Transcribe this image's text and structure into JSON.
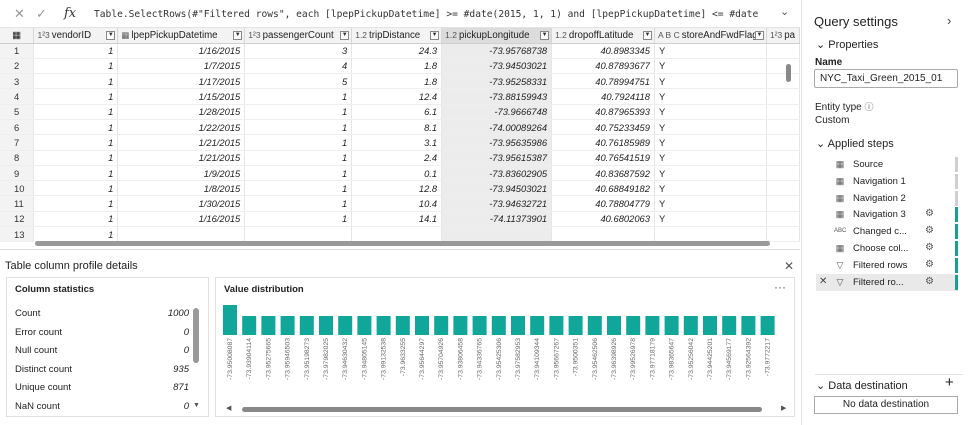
{
  "formula_bar": {
    "cancel_icon": "✕",
    "accept_icon": "✓",
    "fx_label": "fx",
    "formula": "Table.SelectRows(#\"Filtered rows\", each [lpepPickupDatetime] >= #date(2015, 1, 1) and [lpepPickupDatetime] <= #date"
  },
  "grid": {
    "columns": [
      {
        "type": "1²3",
        "name": "vendorID"
      },
      {
        "type": "▦",
        "name": "lpepPickupDatetime"
      },
      {
        "type": "1²3",
        "name": "passengerCount"
      },
      {
        "type": "1.2",
        "name": "tripDistance"
      },
      {
        "type": "1.2",
        "name": "pickupLongitude"
      },
      {
        "type": "1.2",
        "name": "dropoffLatitude"
      },
      {
        "type": "A B C",
        "name": "storeAndFwdFlag"
      },
      {
        "type": "1²3",
        "name": "pa"
      }
    ],
    "rows": [
      [
        "1",
        "1/16/2015",
        "3",
        "24.3",
        "-73.95768738",
        "40.8983345",
        "Y"
      ],
      [
        "1",
        "1/7/2015",
        "4",
        "1.8",
        "-73.94503021",
        "40.87893677",
        "Y"
      ],
      [
        "1",
        "1/17/2015",
        "5",
        "1.8",
        "-73.95258331",
        "40.78994751",
        "Y"
      ],
      [
        "1",
        "1/15/2015",
        "1",
        "12.4",
        "-73.88159943",
        "40.7924118",
        "Y"
      ],
      [
        "1",
        "1/28/2015",
        "1",
        "6.1",
        "-73.9666748",
        "40.87965393",
        "Y"
      ],
      [
        "1",
        "1/22/2015",
        "1",
        "8.1",
        "-74.00089264",
        "40.75233459",
        "Y"
      ],
      [
        "1",
        "1/21/2015",
        "1",
        "3.1",
        "-73.95635986",
        "40.76185989",
        "Y"
      ],
      [
        "1",
        "1/21/2015",
        "1",
        "2.4",
        "-73.95615387",
        "40.76541519",
        "Y"
      ],
      [
        "1",
        "1/9/2015",
        "1",
        "0.1",
        "-73.83602905",
        "40.83687592",
        "Y"
      ],
      [
        "1",
        "1/8/2015",
        "1",
        "12.8",
        "-73.94503021",
        "40.68849182",
        "Y"
      ],
      [
        "1",
        "1/30/2015",
        "1",
        "10.4",
        "-73.94632721",
        "40.78804779",
        "Y"
      ],
      [
        "1",
        "1/16/2015",
        "1",
        "14.1",
        "-74.11373901",
        "40.6802063",
        "Y"
      ],
      [
        "1",
        "",
        "",
        "",
        "",
        "",
        ""
      ]
    ],
    "row_numbers": [
      "1",
      "2",
      "3",
      "4",
      "5",
      "6",
      "7",
      "8",
      "9",
      "10",
      "11",
      "12",
      "13"
    ]
  },
  "profile": {
    "title": "Table column profile details",
    "close_icon": "✕",
    "column_statistics": {
      "heading": "Column statistics",
      "stats": [
        {
          "label": "Count",
          "value": "1000"
        },
        {
          "label": "Error count",
          "value": "0"
        },
        {
          "label": "Null count",
          "value": "0"
        },
        {
          "label": "Distinct count",
          "value": "935"
        },
        {
          "label": "Unique count",
          "value": "871"
        },
        {
          "label": "NaN count",
          "value": "0"
        }
      ]
    },
    "value_distribution": {
      "heading": "Value distribution",
      "more_icon": "···",
      "labels": [
        "-73.95008087",
        "-73.93904114",
        "-73.95275665",
        "-73.95946503",
        "-73.95198273",
        "-73.97982025",
        "-73.94630432",
        "-73.94805145",
        "-73.99132538",
        "-73.9633255",
        "-73.95644297",
        "-73.95704926",
        "-73.93806458",
        "-73.94336765",
        "-73.95425306",
        "-73.97582953",
        "-73.94109344",
        "-73.95667267",
        "-73.9500351",
        "-73.95462506",
        "-73.96398926",
        "-73.99526978",
        "-73.97718179",
        "-73.98365647",
        "-73.95256042",
        "-73.94425201",
        "-73.94569177",
        "-73.92564392",
        "-73.9772217"
      ],
      "chart_data": {
        "type": "bar",
        "values": [
          3,
          1,
          1,
          1,
          1,
          1,
          1,
          1,
          1,
          1,
          1,
          1,
          1,
          1,
          1,
          1,
          1,
          1,
          1,
          1,
          1,
          1,
          1,
          1,
          1,
          1,
          1,
          1,
          1
        ]
      }
    }
  },
  "query_settings": {
    "title": "Query settings",
    "expand_icon": "›",
    "properties_label": "Properties",
    "name_label": "Name",
    "name_value": "NYC_Taxi_Green_2015_01",
    "entity_type_label": "Entity type",
    "entity_type_value": "Custom",
    "applied_steps_label": "Applied steps",
    "steps": [
      {
        "icon": "▦",
        "label": "Source"
      },
      {
        "icon": "▦",
        "label": "Navigation 1"
      },
      {
        "icon": "▦",
        "label": "Navigation 2"
      },
      {
        "icon": "▦",
        "label": "Navigation 3"
      },
      {
        "icon": "ABC",
        "label": "Changed c..."
      },
      {
        "icon": "▦",
        "label": "Choose col..."
      },
      {
        "icon": "▽",
        "label": "Filtered rows"
      },
      {
        "icon": "▽",
        "label": "Filtered ro..."
      }
    ],
    "data_destination_label": "Data destination",
    "add_icon": "+",
    "no_destination": "No data destination"
  }
}
